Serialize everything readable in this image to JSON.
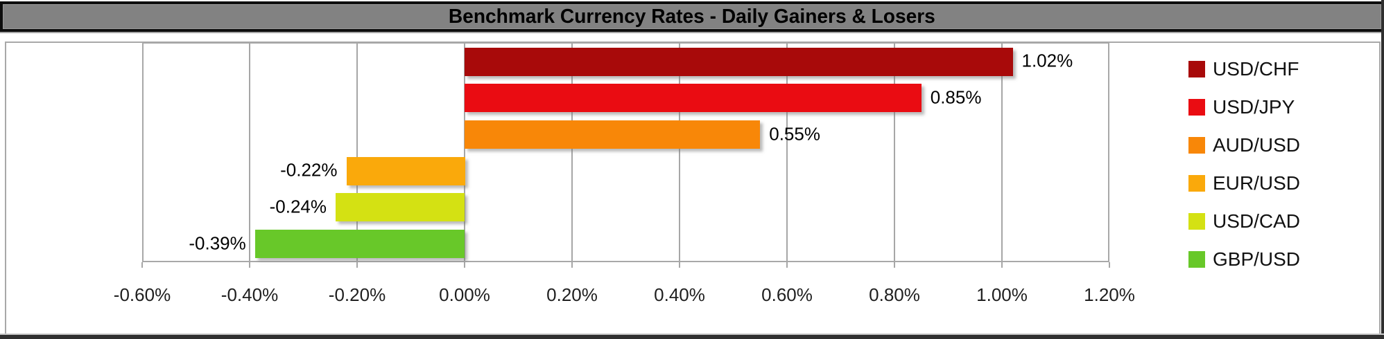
{
  "chart_data": {
    "type": "bar",
    "orientation": "horizontal",
    "title": "Benchmark Currency Rates - Daily Gainers & Losers",
    "categories": [
      "USD/CHF",
      "USD/JPY",
      "AUD/USD",
      "EUR/USD",
      "USD/CAD",
      "GBP/USD"
    ],
    "values": [
      1.02,
      0.85,
      0.55,
      -0.22,
      -0.24,
      -0.39
    ],
    "data_labels": [
      "1.02%",
      "0.85%",
      "0.55%",
      "-0.22%",
      "-0.24%",
      "-0.39%"
    ],
    "bar_colors": [
      "#A80A0A",
      "#EA0C12",
      "#F88708",
      "#FAA90B",
      "#D4E113",
      "#68C829"
    ],
    "x_ticks": [
      "-0.60%",
      "-0.40%",
      "-0.20%",
      "0.00%",
      "0.20%",
      "0.40%",
      "0.60%",
      "0.80%",
      "1.00%",
      "1.20%"
    ],
    "x_tick_values": [
      -0.6,
      -0.4,
      -0.2,
      0.0,
      0.2,
      0.4,
      0.6,
      0.8,
      1.0,
      1.2
    ],
    "xlim": [
      -0.6,
      1.2
    ],
    "unit": "%",
    "grid": true,
    "legend_position": "right"
  },
  "colors": {
    "title_bg": "#828282",
    "title_text": "#000000",
    "title_border": "#0E0E0E",
    "frame": "#A8A8A8",
    "grid": "#A6A6A6",
    "axis_text": "#1F1F1F",
    "background": "#FFFFFF"
  }
}
